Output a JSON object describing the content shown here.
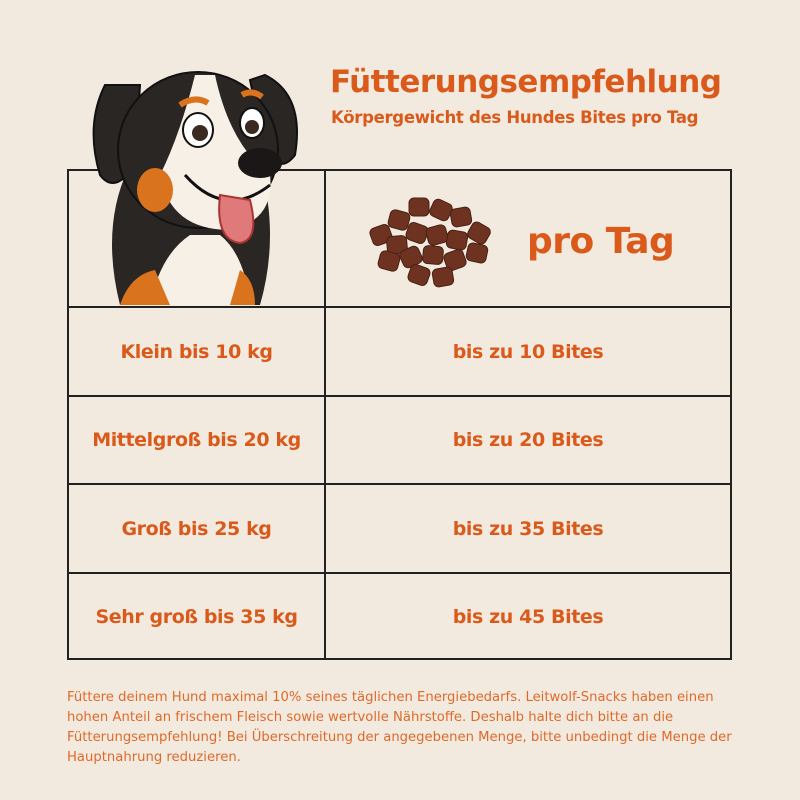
{
  "header": {
    "title": "Fütterungsempfehlung",
    "subtitle": "Körpergewicht des Hundes Bites pro Tag"
  },
  "table": {
    "header_right": "pro Tag",
    "rows": [
      {
        "weight": "Klein bis 10 kg",
        "bites": "bis zu 10 Bites"
      },
      {
        "weight": "Mittelgroß bis 20 kg",
        "bites": "bis zu 20 Bites"
      },
      {
        "weight": "Groß bis 25 kg",
        "bites": "bis zu 35 Bites"
      },
      {
        "weight": "Sehr groß bis  35 kg",
        "bites": "bis zu 45 Bites"
      }
    ]
  },
  "note": "Füttere deinem Hund maximal 10% seines täglichen Energiebedarfs. Leitwolf-Snacks haben einen hohen Anteil an frischem Fleisch sowie wertvolle Nährstoffe. Deshalb halte dich bitte an die Fütterungsempfehlung! Bei Überschreitung der angegebenen Menge, bitte unbedingt die Menge der Hauptnahrung reduzieren.",
  "colors": {
    "accent": "#d95a1b",
    "background": "#f3eadf",
    "border": "#222222",
    "treat": "#6e3320"
  },
  "icons": {
    "dog": "dog-illustration",
    "treats": "treats-pile"
  }
}
